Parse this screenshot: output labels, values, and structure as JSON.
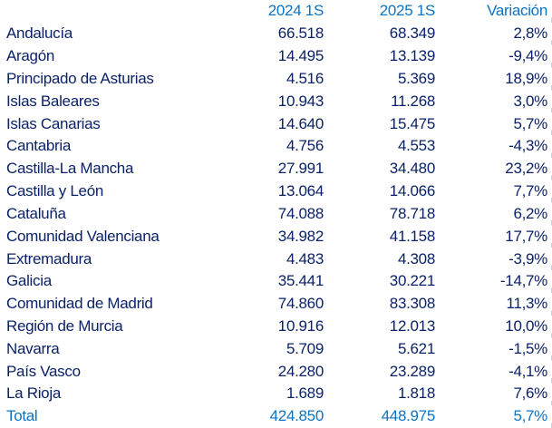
{
  "colors": {
    "header_text": "#0d73c2",
    "body_text": "#0b2268",
    "total_text": "#0d73c2",
    "gridline": "#ccd2d8",
    "background": "#ffffff"
  },
  "table": {
    "columns": [
      "",
      "2024 1S",
      "2025 1S",
      "Variación"
    ],
    "rows": [
      {
        "name": "Andalucía",
        "y2024": "66.518",
        "y2025": "68.349",
        "variation": "2,8%"
      },
      {
        "name": "Aragón",
        "y2024": "14.495",
        "y2025": "13.139",
        "variation": "-9,4%"
      },
      {
        "name": "Principado de Asturias",
        "y2024": "4.516",
        "y2025": "5.369",
        "variation": "18,9%"
      },
      {
        "name": "Islas Baleares",
        "y2024": "10.943",
        "y2025": "11.268",
        "variation": "3,0%"
      },
      {
        "name": "Islas Canarias",
        "y2024": "14.640",
        "y2025": "15.475",
        "variation": "5,7%"
      },
      {
        "name": "Cantabria",
        "y2024": "4.756",
        "y2025": "4.553",
        "variation": "-4,3%"
      },
      {
        "name": "Castilla-La Mancha",
        "y2024": "27.991",
        "y2025": "34.480",
        "variation": "23,2%"
      },
      {
        "name": "Castilla y León",
        "y2024": "13.064",
        "y2025": "14.066",
        "variation": "7,7%"
      },
      {
        "name": "Cataluña",
        "y2024": "74.088",
        "y2025": "78.718",
        "variation": "6,2%"
      },
      {
        "name": "Comunidad Valenciana",
        "y2024": "34.982",
        "y2025": "41.158",
        "variation": "17,7%"
      },
      {
        "name": "Extremadura",
        "y2024": "4.483",
        "y2025": "4.308",
        "variation": "-3,9%"
      },
      {
        "name": "Galicia",
        "y2024": "35.441",
        "y2025": "30.221",
        "variation": "-14,7%"
      },
      {
        "name": "Comunidad de Madrid",
        "y2024": "74.860",
        "y2025": "83.308",
        "variation": "11,3%"
      },
      {
        "name": "Región de Murcia",
        "y2024": "10.916",
        "y2025": "12.013",
        "variation": "10,0%"
      },
      {
        "name": "Navarra",
        "y2024": "5.709",
        "y2025": "5.621",
        "variation": "-1,5%"
      },
      {
        "name": "País Vasco",
        "y2024": "24.280",
        "y2025": "23.289",
        "variation": "-4,1%"
      },
      {
        "name": "La Rioja",
        "y2024": "1.689",
        "y2025": "1.818",
        "variation": "7,6%"
      }
    ],
    "total": {
      "name": "Total",
      "y2024": "424.850",
      "y2025": "448.975",
      "variation": "5,7%"
    }
  },
  "chart_data": {
    "type": "table",
    "title": "",
    "columns": [
      "",
      "2024 1S",
      "2025 1S",
      "Variación"
    ],
    "rows": [
      {
        "region": "Andalucía",
        "v2024": 66518,
        "v2025": 68349,
        "variation_pct": 2.8
      },
      {
        "region": "Aragón",
        "v2024": 14495,
        "v2025": 13139,
        "variation_pct": -9.4
      },
      {
        "region": "Principado de Asturias",
        "v2024": 4516,
        "v2025": 5369,
        "variation_pct": 18.9
      },
      {
        "region": "Islas Baleares",
        "v2024": 10943,
        "v2025": 11268,
        "variation_pct": 3.0
      },
      {
        "region": "Islas Canarias",
        "v2024": 14640,
        "v2025": 15475,
        "variation_pct": 5.7
      },
      {
        "region": "Cantabria",
        "v2024": 4756,
        "v2025": 4553,
        "variation_pct": -4.3
      },
      {
        "region": "Castilla-La Mancha",
        "v2024": 27991,
        "v2025": 34480,
        "variation_pct": 23.2
      },
      {
        "region": "Castilla y León",
        "v2024": 13064,
        "v2025": 14066,
        "variation_pct": 7.7
      },
      {
        "region": "Cataluña",
        "v2024": 74088,
        "v2025": 78718,
        "variation_pct": 6.2
      },
      {
        "region": "Comunidad Valenciana",
        "v2024": 34982,
        "v2025": 41158,
        "variation_pct": 17.7
      },
      {
        "region": "Extremadura",
        "v2024": 4483,
        "v2025": 4308,
        "variation_pct": -3.9
      },
      {
        "region": "Galicia",
        "v2024": 35441,
        "v2025": 30221,
        "variation_pct": -14.7
      },
      {
        "region": "Comunidad de Madrid",
        "v2024": 74860,
        "v2025": 83308,
        "variation_pct": 11.3
      },
      {
        "region": "Región de Murcia",
        "v2024": 10916,
        "v2025": 12013,
        "variation_pct": 10.0
      },
      {
        "region": "Navarra",
        "v2024": 5709,
        "v2025": 5621,
        "variation_pct": -1.5
      },
      {
        "region": "País Vasco",
        "v2024": 24280,
        "v2025": 23289,
        "variation_pct": -4.1
      },
      {
        "region": "La Rioja",
        "v2024": 1689,
        "v2025": 1818,
        "variation_pct": 7.6
      }
    ],
    "total": {
      "region": "Total",
      "v2024": 424850,
      "v2025": 448975,
      "variation_pct": 5.7
    }
  }
}
